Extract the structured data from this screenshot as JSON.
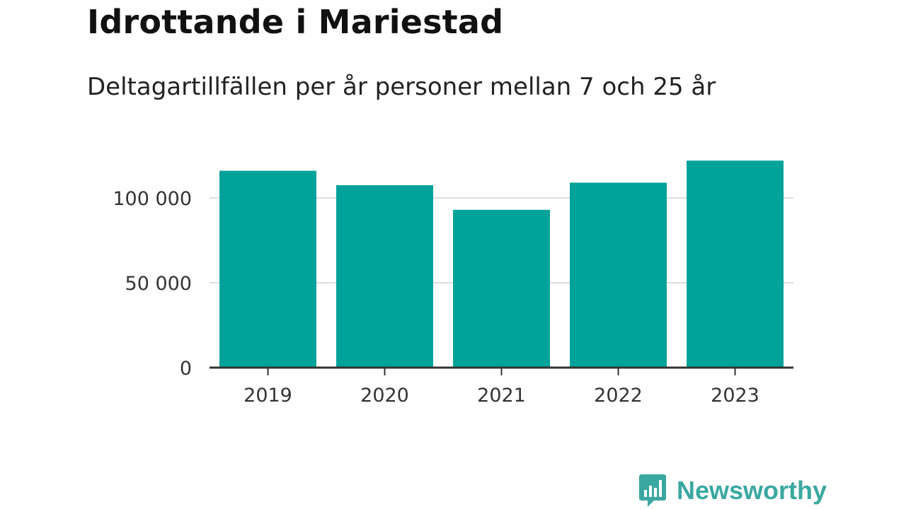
{
  "header": {
    "title": "Idrottande i Mariestad",
    "subtitle": "Deltagartillfällen per år personer mellan 7 och 25 år"
  },
  "brand": {
    "name": "Newsworthy",
    "icon": "bar-chart-speech-bubble-icon",
    "color": "#3aa8a0"
  },
  "colors": {
    "bar": "#00a39a",
    "grid": "#dddddd",
    "axis": "#333333",
    "text": "#333333"
  },
  "chart_data": {
    "type": "bar",
    "title": "Idrottande i Mariestad",
    "subtitle": "Deltagartillfällen per år personer mellan 7 och 25 år",
    "categories": [
      "2019",
      "2020",
      "2021",
      "2022",
      "2023"
    ],
    "values": [
      116000,
      107500,
      93000,
      109000,
      122000
    ],
    "xlabel": "",
    "ylabel": "",
    "ylim": [
      0,
      125000
    ],
    "yticks": [
      0,
      50000,
      100000
    ],
    "ytick_labels": [
      "0",
      "50 000",
      "100 000"
    ],
    "grid": true,
    "legend": "none"
  }
}
